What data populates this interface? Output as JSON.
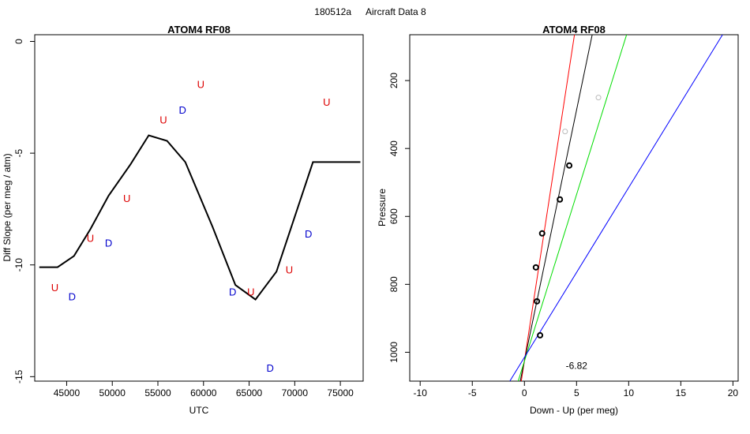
{
  "page": {
    "suptitle_id": "180512a",
    "suptitle_text": "Aircraft Data 8"
  },
  "chart_data": [
    {
      "type": "line",
      "title": "ATOM4 RF08",
      "xlabel": "UTC",
      "ylabel": "Diff Slope (per meg / atm)",
      "xlim": [
        41500,
        77500
      ],
      "ylim": [
        -15.2,
        0.3
      ],
      "xticks": [
        45000,
        50000,
        55000,
        60000,
        65000,
        70000,
        75000
      ],
      "yticks": [
        0,
        -5,
        -10,
        -15
      ],
      "line": {
        "color": "#000000",
        "x": [
          42000,
          44000,
          45800,
          47600,
          49600,
          52000,
          54000,
          56000,
          58000,
          61000,
          63500,
          65700,
          68000,
          72000,
          77200
        ],
        "y": [
          -10.1,
          -10.1,
          -9.6,
          -8.4,
          -6.9,
          -5.5,
          -4.2,
          -4.45,
          -5.4,
          -8.3,
          -10.9,
          -11.55,
          -10.3,
          -5.4,
          -5.4
        ]
      },
      "labels": [
        {
          "text": "U",
          "x": 43700,
          "y": -11.0,
          "color": "#dd0000"
        },
        {
          "text": "D",
          "x": 45600,
          "y": -11.4,
          "color": "#0000cc"
        },
        {
          "text": "U",
          "x": 47600,
          "y": -8.8,
          "color": "#dd0000"
        },
        {
          "text": "D",
          "x": 49600,
          "y": -9.0,
          "color": "#0000cc"
        },
        {
          "text": "U",
          "x": 51600,
          "y": -7.0,
          "color": "#dd0000"
        },
        {
          "text": "U",
          "x": 55600,
          "y": -3.5,
          "color": "#dd0000"
        },
        {
          "text": "D",
          "x": 57700,
          "y": -3.05,
          "color": "#0000cc"
        },
        {
          "text": "U",
          "x": 59700,
          "y": -1.9,
          "color": "#dd0000"
        },
        {
          "text": "D",
          "x": 63200,
          "y": -11.2,
          "color": "#0000cc"
        },
        {
          "text": "U",
          "x": 65200,
          "y": -11.2,
          "color": "#dd0000"
        },
        {
          "text": "D",
          "x": 67300,
          "y": -14.6,
          "color": "#0000cc"
        },
        {
          "text": "U",
          "x": 69400,
          "y": -10.2,
          "color": "#dd0000"
        },
        {
          "text": "D",
          "x": 71500,
          "y": -8.6,
          "color": "#0000cc"
        },
        {
          "text": "U",
          "x": 73500,
          "y": -2.7,
          "color": "#dd0000"
        }
      ]
    },
    {
      "type": "scatter",
      "title": "ATOM4 RF08",
      "xlabel": "Down - Up (per meg)",
      "ylabel": "Pressure",
      "xlim": [
        -11,
        20.5
      ],
      "ylim": [
        1085,
        65
      ],
      "xticks": [
        -10,
        -5,
        0,
        5,
        10,
        15,
        20
      ],
      "yticks": [
        200,
        400,
        600,
        800,
        1000
      ],
      "points_black": [
        {
          "x": 4.3,
          "y": 450
        },
        {
          "x": 3.4,
          "y": 550
        },
        {
          "x": 1.7,
          "y": 650
        },
        {
          "x": 1.1,
          "y": 750
        },
        {
          "x": 1.2,
          "y": 850
        },
        {
          "x": 1.5,
          "y": 950
        }
      ],
      "points_grey": [
        {
          "x": 7.1,
          "y": 250
        },
        {
          "x": 3.9,
          "y": 350
        }
      ],
      "fit_lines": [
        {
          "color": "#ff0000",
          "x1": -0.3,
          "y1": 1085,
          "x2": 4.8,
          "y2": 65
        },
        {
          "color": "#000000",
          "x1": -0.4,
          "y1": 1085,
          "x2": 6.5,
          "y2": 65
        },
        {
          "color": "#00dd00",
          "x1": -0.6,
          "y1": 1085,
          "x2": 9.8,
          "y2": 65
        },
        {
          "color": "#0000ff",
          "x1": -1.4,
          "y1": 1085,
          "x2": 19.0,
          "y2": 65
        }
      ],
      "annotation": {
        "text": "-6.82",
        "x": 5.0,
        "y": 1040
      }
    }
  ]
}
